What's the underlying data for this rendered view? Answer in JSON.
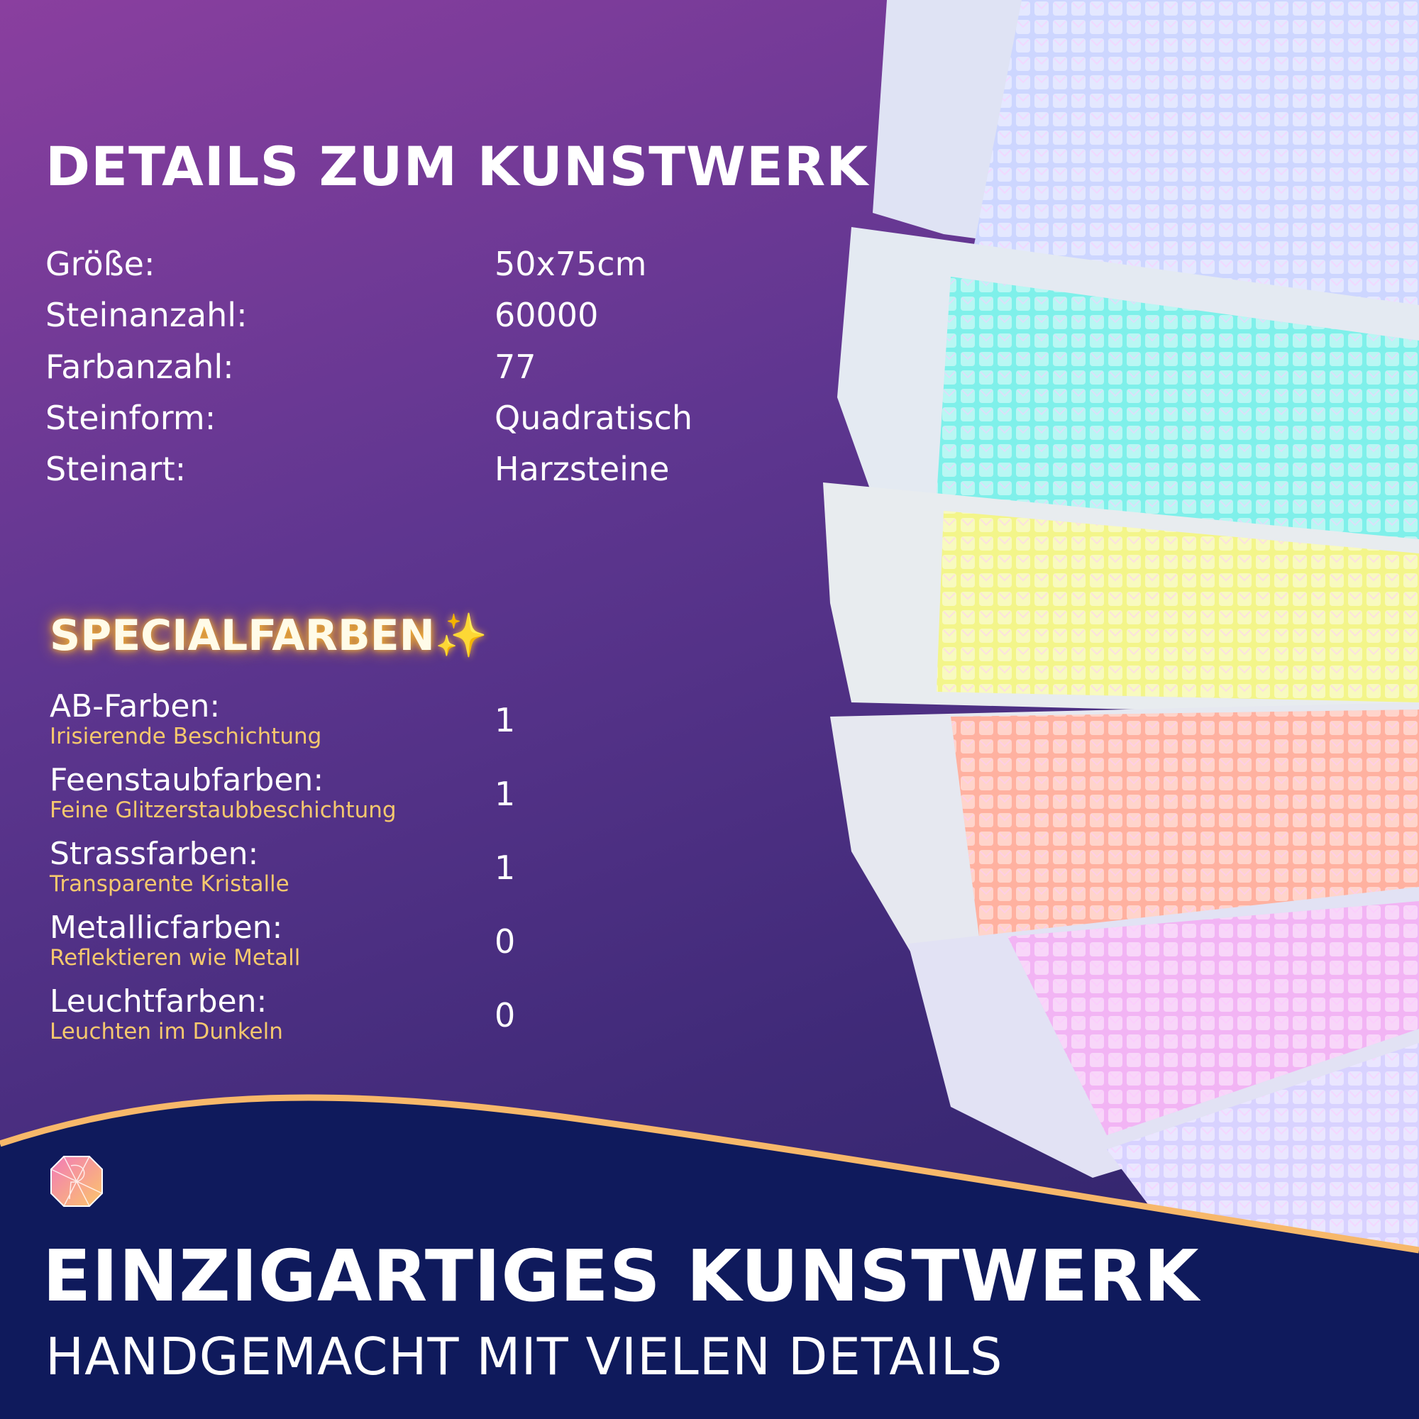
{
  "details": {
    "title": "DETAILS ZUM KUNSTWERK",
    "rows": [
      {
        "label": "Größe:",
        "value": "50x75cm"
      },
      {
        "label": "Steinanzahl:",
        "value": "60000"
      },
      {
        "label": "Farbanzahl:",
        "value": "77"
      },
      {
        "label": "Steinform:",
        "value": "Quadratisch"
      },
      {
        "label": "Steinart:",
        "value": "Harzsteine"
      }
    ]
  },
  "special": {
    "title": "SPECIALFARBEN",
    "icon": "sparkles-icon",
    "rows": [
      {
        "label": "AB-Farben:",
        "sub": "Irisierende Beschichtung",
        "value": "1"
      },
      {
        "label": "Feenstaubfarben:",
        "sub": "Feine Glitzerstaubbeschichtung",
        "value": "1"
      },
      {
        "label": "Strassfarben:",
        "sub": "Transparente Kristalle",
        "value": "1"
      },
      {
        "label": "Metallicfarben:",
        "sub": "Reflektieren wie Metall",
        "value": "0"
      },
      {
        "label": "Leuchtfarben:",
        "sub": "Leuchten im Dunkeln",
        "value": "0"
      }
    ]
  },
  "footer": {
    "headline": "EINZIGARTIGES KUNSTWERK",
    "subline": "HANDGEMACHT MIT VIELEN DETAILS"
  },
  "colors": {
    "accent_gold": "#f5c86e",
    "footer_navy": "#0f1a5c",
    "wave_orange": "#f7b86a"
  },
  "photo": {
    "bag_colors": [
      "#cdd6ff",
      "#7ff0ea",
      "#f3f58a",
      "#ffb1a0",
      "#f2b4f4",
      "#d8d2ff"
    ]
  }
}
